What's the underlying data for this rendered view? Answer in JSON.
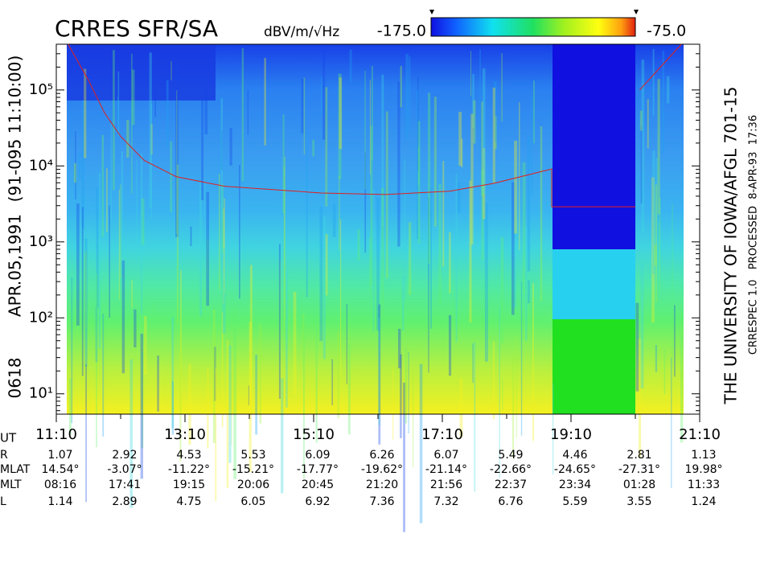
{
  "chart_data": {
    "type": "spectrogram",
    "title": "CRRES SFR/SA",
    "colorbar": {
      "label": "dBV/m/√Hz",
      "clim": [
        -175,
        -75
      ],
      "ticks": [
        {
          "value": -175,
          "label": "-175.0"
        },
        {
          "value": -75,
          "label": "-75.0"
        }
      ]
    },
    "left_labels": [
      "0618",
      "APR.05,1991",
      "(91-095 11:10:00)"
    ],
    "right_labels": [
      "THE UNIVERSITY OF IOWA/AFGL 701-15",
      "CRRESPEC 1.0   PROCESSED  8-APR-93  17:36"
    ],
    "y_log": true,
    "ylim": [
      5.4,
      400000
    ],
    "yticks": [
      {
        "value": 10,
        "label": "10¹"
      },
      {
        "value": 100,
        "label": "10²"
      },
      {
        "value": 1000,
        "label": "10³"
      },
      {
        "value": 10000,
        "label": "10⁴"
      },
      {
        "value": 100000,
        "label": "10⁵"
      }
    ],
    "xlim": [
      "11:10",
      "21:10"
    ],
    "xticks": [
      "11:10",
      "13:10",
      "15:10",
      "17:10",
      "19:10",
      "21:10"
    ],
    "x_minor_ticks": [
      "12:10",
      "14:10",
      "16:10",
      "18:10",
      "20:10"
    ],
    "x_label": "UT",
    "series": [
      {
        "name": "gyrofrequency",
        "color": "#e02020",
        "x": [
          "11:21",
          "11:40",
          "11:55",
          "12:10",
          "12:32",
          "13:02",
          "13:47",
          "15:17",
          "16:17",
          "17:17",
          "17:58",
          "18:52",
          "18:52",
          "20:10",
          null,
          "20:14",
          "20:32",
          "20:53"
        ],
        "values": [
          400000,
          134000,
          50000,
          24500,
          11800,
          7200,
          5400,
          4400,
          4200,
          4650,
          5900,
          9100,
          2900,
          2900,
          null,
          100000,
          190000,
          400000
        ]
      }
    ],
    "ephemeris": {
      "rows": [
        {
          "label": "R",
          "values": [
            "1.07",
            "2.92",
            "4.53",
            "5.53",
            "6.09",
            "6.26",
            "6.07",
            "5.49",
            "4.46",
            "2.81",
            "1.13"
          ]
        },
        {
          "label": "MLAT",
          "values": [
            "14.54°",
            "-3.07°",
            "-11.22°",
            "-15.21°",
            "-17.77°",
            "-19.62°",
            "-21.14°",
            "-22.66°",
            "-24.65°",
            "-27.31°",
            "19.98°"
          ]
        },
        {
          "label": "MLT",
          "values": [
            "08:16",
            "17:41",
            "19:15",
            "20:06",
            "20:45",
            "21:20",
            "21:56",
            "22:37",
            "23:34",
            "01:28",
            "11:33"
          ]
        },
        {
          "label": "L",
          "values": [
            "1.14",
            "2.89",
            "4.75",
            "6.05",
            "6.92",
            "7.36",
            "7.32",
            "6.76",
            "5.59",
            "3.55",
            "1.24"
          ]
        }
      ]
    }
  }
}
